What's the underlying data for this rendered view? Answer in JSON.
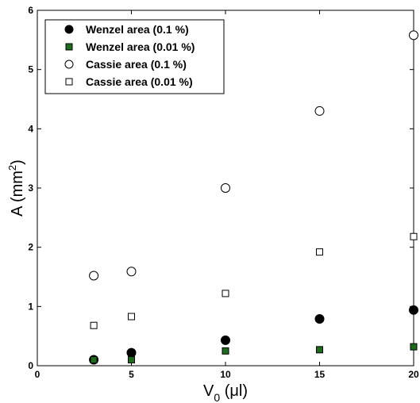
{
  "chart_data": {
    "type": "scatter",
    "xlim": [
      0,
      20
    ],
    "ylim": [
      0,
      6
    ],
    "xticks": [
      "0",
      "5",
      "10",
      "15",
      "20"
    ],
    "yticks": [
      "0",
      "1",
      "2",
      "3",
      "4",
      "5",
      "6"
    ],
    "xlabel": {
      "main": "V",
      "sub": "0",
      "unit": " (μl)"
    },
    "ylabel": {
      "main": "A (mm",
      "sup": "2",
      "end": ")"
    },
    "grid": false,
    "legend_position": "top-left",
    "series": [
      {
        "name": "Wenzel area (0.1 %)",
        "marker": "circle",
        "fill": "#000000",
        "stroke": "#000000",
        "x": [
          3,
          5,
          10,
          15,
          20
        ],
        "y": [
          0.1,
          0.22,
          0.43,
          0.79,
          0.94
        ]
      },
      {
        "name": "Wenzel area (0.01 %)",
        "marker": "square",
        "fill": "#1e6b1e",
        "stroke": "#000000",
        "x": [
          3,
          5,
          10,
          15,
          20
        ],
        "y": [
          0.1,
          0.1,
          0.25,
          0.27,
          0.32
        ]
      },
      {
        "name": "Cassie area (0.1 %)",
        "marker": "circle",
        "fill": "#ffffff",
        "stroke": "#000000",
        "x": [
          3,
          5,
          10,
          15,
          20
        ],
        "y": [
          1.52,
          1.59,
          3.0,
          4.3,
          5.58
        ]
      },
      {
        "name": "Cassie area (0.01 %)",
        "marker": "square",
        "fill": "#ffffff",
        "stroke": "#000000",
        "x": [
          3,
          5,
          10,
          15,
          20
        ],
        "y": [
          0.68,
          0.83,
          1.22,
          1.92,
          2.18
        ]
      }
    ]
  }
}
